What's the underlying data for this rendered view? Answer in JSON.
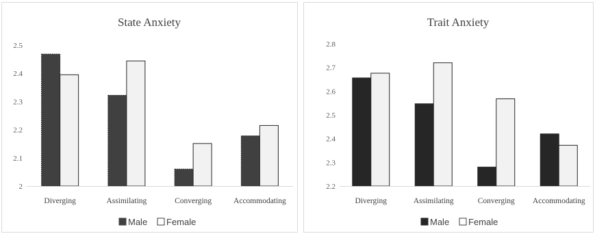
{
  "chart_data": [
    {
      "type": "bar",
      "title": "State Anxiety",
      "categories": [
        "Diverging",
        "Assimilating",
        "Converging",
        "Accommodating"
      ],
      "series": [
        {
          "name": "Male",
          "values": [
            2.468,
            2.322,
            2.06,
            2.178
          ],
          "color": "#404040"
        },
        {
          "name": "Female",
          "values": [
            2.395,
            2.444,
            2.151,
            2.215
          ],
          "color": "#f2f2f2"
        }
      ],
      "ylim": [
        2,
        2.5
      ],
      "yticks": [
        "2",
        "2.1",
        "2.2",
        "2.3",
        "2.4",
        "2.5"
      ],
      "grid": false,
      "legend": "bottom"
    },
    {
      "type": "bar",
      "title": "Trait Anxiety",
      "categories": [
        "Diverging",
        "Assimilating",
        "Converging",
        "Accommodating"
      ],
      "series": [
        {
          "name": "Male",
          "values": [
            2.656,
            2.547,
            2.28,
            2.42
          ],
          "color": "#262626"
        },
        {
          "name": "Female",
          "values": [
            2.676,
            2.72,
            2.568,
            2.372
          ],
          "color": "#f2f2f2"
        }
      ],
      "ylim": [
        2.2,
        2.8
      ],
      "yticks": [
        "2.2",
        "2.3",
        "2.4",
        "2.5",
        "2.6",
        "2.7",
        "2.8"
      ],
      "grid": false,
      "legend": "bottom"
    }
  ]
}
